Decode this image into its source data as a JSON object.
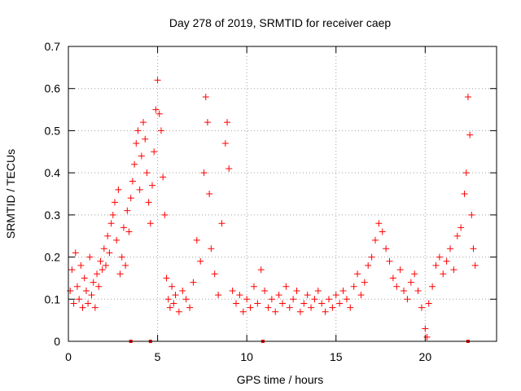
{
  "chart_data": {
    "type": "scatter",
    "title": "Day 278 of 2019, SRMTID for receiver caep",
    "xlabel": "GPS time / hours",
    "ylabel": "SRMTID / TECUs",
    "xlim": [
      0,
      24
    ],
    "ylim": [
      0,
      0.7
    ],
    "xticks": [
      0,
      5,
      10,
      15,
      20
    ],
    "xtick_labels": [
      "0",
      "5",
      "10",
      "15",
      "20"
    ],
    "yticks": [
      0,
      0.1,
      0.2,
      0.3,
      0.4,
      0.5,
      0.6,
      0.7
    ],
    "ytick_labels": [
      "0",
      "0.1",
      "0.2",
      "0.3",
      "0.4",
      "0.5",
      "0.6",
      "0.7"
    ],
    "grid": true,
    "marker": "+",
    "color": "#ff0000",
    "series": [
      {
        "name": "SRMTID",
        "points": [
          [
            0.1,
            0.12
          ],
          [
            0.2,
            0.17
          ],
          [
            0.3,
            0.09
          ],
          [
            0.4,
            0.21
          ],
          [
            0.5,
            0.13
          ],
          [
            0.6,
            0.1
          ],
          [
            0.7,
            0.18
          ],
          [
            0.8,
            0.08
          ],
          [
            0.9,
            0.15
          ],
          [
            1.0,
            0.12
          ],
          [
            1.1,
            0.09
          ],
          [
            1.2,
            0.2
          ],
          [
            1.3,
            0.11
          ],
          [
            1.4,
            0.14
          ],
          [
            1.5,
            0.08
          ],
          [
            1.6,
            0.16
          ],
          [
            1.7,
            0.13
          ],
          [
            1.8,
            0.19
          ],
          [
            1.9,
            0.17
          ],
          [
            2.0,
            0.22
          ],
          [
            2.1,
            0.18
          ],
          [
            2.2,
            0.25
          ],
          [
            2.3,
            0.21
          ],
          [
            2.4,
            0.28
          ],
          [
            2.5,
            0.3
          ],
          [
            2.6,
            0.33
          ],
          [
            2.7,
            0.24
          ],
          [
            2.8,
            0.36
          ],
          [
            2.9,
            0.16
          ],
          [
            3.0,
            0.2
          ],
          [
            3.1,
            0.27
          ],
          [
            3.2,
            0.18
          ],
          [
            3.3,
            0.31
          ],
          [
            3.4,
            0.26
          ],
          [
            3.5,
            0.34
          ],
          [
            3.6,
            0.38
          ],
          [
            3.7,
            0.42
          ],
          [
            3.8,
            0.47
          ],
          [
            3.9,
            0.5
          ],
          [
            4.0,
            0.36
          ],
          [
            4.1,
            0.44
          ],
          [
            4.2,
            0.52
          ],
          [
            4.3,
            0.48
          ],
          [
            4.4,
            0.4
          ],
          [
            4.5,
            0.33
          ],
          [
            4.6,
            0.28
          ],
          [
            4.7,
            0.37
          ],
          [
            4.8,
            0.45
          ],
          [
            4.9,
            0.55
          ],
          [
            5.0,
            0.62
          ],
          [
            5.1,
            0.54
          ],
          [
            5.2,
            0.5
          ],
          [
            5.3,
            0.39
          ],
          [
            5.4,
            0.3
          ],
          [
            5.5,
            0.15
          ],
          [
            5.6,
            0.1
          ],
          [
            5.7,
            0.08
          ],
          [
            5.8,
            0.13
          ],
          [
            5.9,
            0.09
          ],
          [
            6.0,
            0.11
          ],
          [
            6.2,
            0.07
          ],
          [
            6.4,
            0.12
          ],
          [
            6.6,
            0.1
          ],
          [
            6.8,
            0.08
          ],
          [
            7.0,
            0.14
          ],
          [
            7.2,
            0.24
          ],
          [
            7.4,
            0.19
          ],
          [
            7.6,
            0.4
          ],
          [
            7.7,
            0.58
          ],
          [
            7.8,
            0.52
          ],
          [
            7.9,
            0.35
          ],
          [
            8.0,
            0.22
          ],
          [
            8.2,
            0.16
          ],
          [
            8.4,
            0.11
          ],
          [
            8.6,
            0.28
          ],
          [
            8.8,
            0.47
          ],
          [
            8.9,
            0.52
          ],
          [
            9.0,
            0.41
          ],
          [
            9.2,
            0.12
          ],
          [
            9.4,
            0.09
          ],
          [
            9.6,
            0.11
          ],
          [
            9.8,
            0.07
          ],
          [
            10.0,
            0.1
          ],
          [
            10.2,
            0.08
          ],
          [
            10.4,
            0.13
          ],
          [
            10.6,
            0.09
          ],
          [
            10.8,
            0.17
          ],
          [
            11.0,
            0.12
          ],
          [
            11.2,
            0.08
          ],
          [
            11.4,
            0.1
          ],
          [
            11.6,
            0.07
          ],
          [
            11.8,
            0.11
          ],
          [
            12.0,
            0.09
          ],
          [
            12.2,
            0.13
          ],
          [
            12.4,
            0.08
          ],
          [
            12.6,
            0.1
          ],
          [
            12.8,
            0.12
          ],
          [
            13.0,
            0.07
          ],
          [
            13.2,
            0.09
          ],
          [
            13.4,
            0.11
          ],
          [
            13.6,
            0.08
          ],
          [
            13.8,
            0.1
          ],
          [
            14.0,
            0.12
          ],
          [
            14.2,
            0.09
          ],
          [
            14.4,
            0.07
          ],
          [
            14.6,
            0.1
          ],
          [
            14.8,
            0.08
          ],
          [
            15.0,
            0.11
          ],
          [
            15.2,
            0.09
          ],
          [
            15.4,
            0.12
          ],
          [
            15.6,
            0.1
          ],
          [
            15.8,
            0.08
          ],
          [
            16.0,
            0.13
          ],
          [
            16.2,
            0.16
          ],
          [
            16.4,
            0.11
          ],
          [
            16.6,
            0.14
          ],
          [
            16.8,
            0.18
          ],
          [
            17.0,
            0.2
          ],
          [
            17.2,
            0.24
          ],
          [
            17.4,
            0.28
          ],
          [
            17.6,
            0.26
          ],
          [
            17.8,
            0.22
          ],
          [
            18.0,
            0.19
          ],
          [
            18.2,
            0.15
          ],
          [
            18.4,
            0.13
          ],
          [
            18.6,
            0.17
          ],
          [
            18.8,
            0.12
          ],
          [
            19.0,
            0.1
          ],
          [
            19.2,
            0.14
          ],
          [
            19.4,
            0.16
          ],
          [
            19.6,
            0.12
          ],
          [
            19.8,
            0.08
          ],
          [
            20.0,
            0.03
          ],
          [
            20.1,
            0.01
          ],
          [
            20.2,
            0.09
          ],
          [
            20.4,
            0.13
          ],
          [
            20.6,
            0.18
          ],
          [
            20.8,
            0.2
          ],
          [
            21.0,
            0.16
          ],
          [
            21.2,
            0.19
          ],
          [
            21.4,
            0.22
          ],
          [
            21.6,
            0.17
          ],
          [
            21.8,
            0.25
          ],
          [
            22.0,
            0.27
          ],
          [
            22.2,
            0.35
          ],
          [
            22.3,
            0.4
          ],
          [
            22.4,
            0.58
          ],
          [
            22.5,
            0.49
          ],
          [
            22.6,
            0.3
          ],
          [
            22.7,
            0.22
          ],
          [
            22.8,
            0.18
          ]
        ]
      }
    ],
    "axis_markers_x": [
      3.5,
      4.6,
      10.9,
      22.4
    ]
  }
}
